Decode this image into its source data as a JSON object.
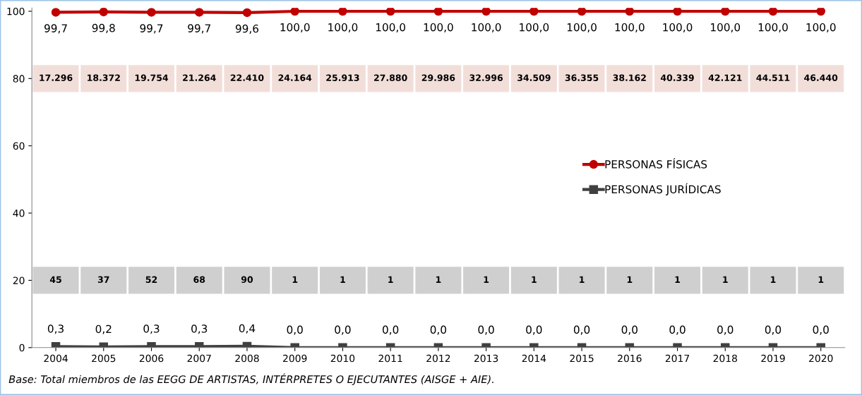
{
  "chart_data": {
    "type": "line",
    "categories": [
      "2004",
      "2005",
      "2006",
      "2007",
      "2008",
      "2009",
      "2010",
      "2011",
      "2012",
      "2013",
      "2014",
      "2015",
      "2016",
      "2017",
      "2018",
      "2019",
      "2020"
    ],
    "series": [
      {
        "name": "PERSONAS FÍSICAS",
        "color": "#c00000",
        "marker": "circle",
        "values": [
          99.7,
          99.8,
          99.7,
          99.7,
          99.6,
          100.0,
          100.0,
          100.0,
          100.0,
          100.0,
          100.0,
          100.0,
          100.0,
          100.0,
          100.0,
          100.0,
          100.0
        ],
        "value_labels": [
          "99,7",
          "99,8",
          "99,7",
          "99,7",
          "99,6",
          "100,0",
          "100,0",
          "100,0",
          "100,0",
          "100,0",
          "100,0",
          "100,0",
          "100,0",
          "100,0",
          "100,0",
          "100,0",
          "100,0"
        ]
      },
      {
        "name": "PERSONAS JURÍDICAS",
        "color": "#404040",
        "marker": "square",
        "values": [
          0.3,
          0.2,
          0.3,
          0.3,
          0.4,
          0.0,
          0.0,
          0.0,
          0.0,
          0.0,
          0.0,
          0.0,
          0.0,
          0.0,
          0.0,
          0.0,
          0.0
        ],
        "value_labels": [
          "0,3",
          "0,2",
          "0,3",
          "0,3",
          "0,4",
          "0,0",
          "0,0",
          "0,0",
          "0,0",
          "0,0",
          "0,0",
          "0,0",
          "0,0",
          "0,0",
          "0,0",
          "0,0",
          "0,0"
        ]
      }
    ],
    "ylim": [
      0,
      101
    ],
    "yticks": [
      0,
      20,
      40,
      60,
      80,
      100
    ],
    "grid": false,
    "legend": "center right",
    "annotations": [
      "17.296",
      "18.372",
      "19.754",
      "21.264",
      "22.410",
      "24.164",
      "25.913",
      "27.880",
      "29.986",
      "32.996",
      "34.509",
      "36.355",
      "38.162",
      "40.339",
      "42.121",
      "44.511",
      "46.440",
      "45",
      "37",
      "52",
      "68",
      "90",
      "1",
      "1",
      "1",
      "1",
      "1",
      "1",
      "1",
      "1",
      "1",
      "1",
      "1",
      "1",
      "Base: Total miembros de las EEGG DE ARTISTAS, INTÉRPRETES O EJECUTANTES (AISGE + AIE)."
    ]
  }
}
